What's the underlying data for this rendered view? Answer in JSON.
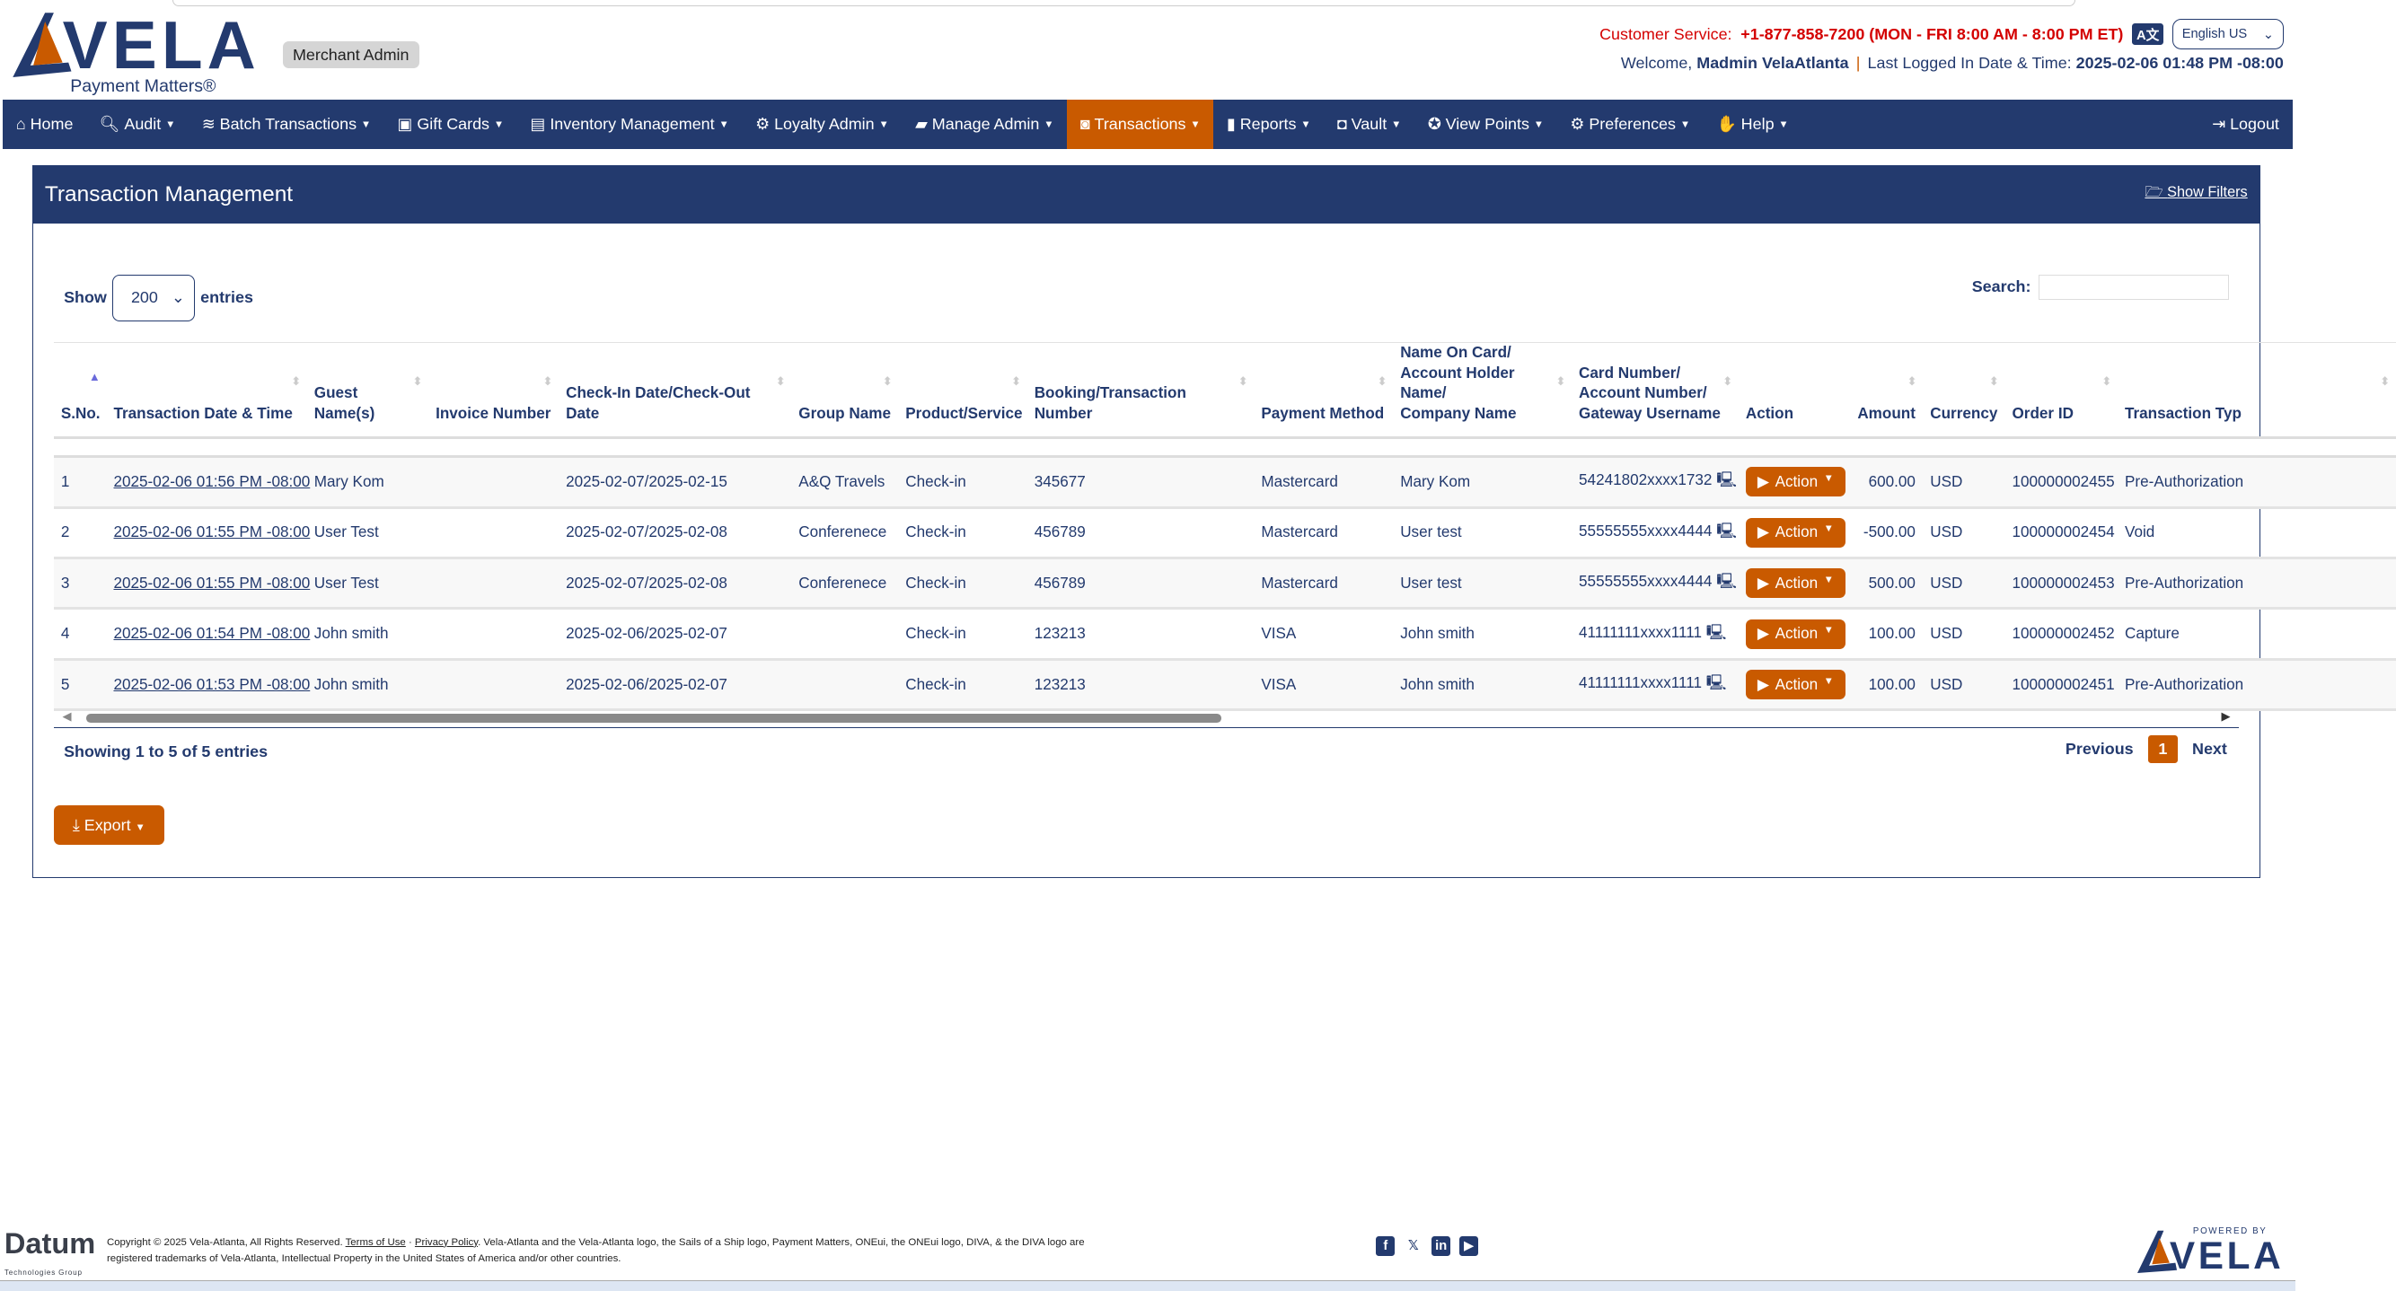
{
  "header": {
    "logo_text": "VELA",
    "tagline": "Payment Matters®",
    "role_badge": "Merchant Admin",
    "customer_service_label": "Customer Service:",
    "customer_service_value": "+1-877-858-7200 (MON - FRI 8:00 AM - 8:00 PM ET)",
    "language": "English US",
    "welcome_label": "Welcome,",
    "user_name": "Madmin VelaAtlanta",
    "last_login_label": "Last Logged In Date & Time:",
    "last_login_value": "2025-02-06 01:48 PM -08:00"
  },
  "nav": [
    {
      "label": "Home",
      "icon": "home-icon"
    },
    {
      "label": "Audit",
      "icon": "search-icon",
      "dropdown": true
    },
    {
      "label": "Batch Transactions",
      "icon": "layers-icon",
      "dropdown": true
    },
    {
      "label": "Gift Cards",
      "icon": "gift-icon",
      "dropdown": true
    },
    {
      "label": "Inventory Management",
      "icon": "warehouse-icon",
      "dropdown": true
    },
    {
      "label": "Loyalty Admin",
      "icon": "gears-icon",
      "dropdown": true
    },
    {
      "label": "Manage Admin",
      "icon": "briefcase-icon",
      "dropdown": true
    },
    {
      "label": "Transactions",
      "icon": "money-icon",
      "dropdown": true,
      "active": true
    },
    {
      "label": "Reports",
      "icon": "bar-chart-icon",
      "dropdown": true
    },
    {
      "label": "Vault",
      "icon": "safe-icon",
      "dropdown": true
    },
    {
      "label": "View Points",
      "icon": "award-icon",
      "dropdown": true
    },
    {
      "label": "Preferences",
      "icon": "gear-icon",
      "dropdown": true
    },
    {
      "label": "Help",
      "icon": "hand-icon",
      "dropdown": true
    }
  ],
  "logout": "Logout",
  "panel": {
    "title": "Transaction Management",
    "show_filters": "Show Filters",
    "show_label": "Show",
    "entries_value": "200",
    "entries_label": "entries",
    "search_label": "Search:",
    "search_value": ""
  },
  "table": {
    "columns": [
      "S.No.",
      "Transaction Date & Time",
      "Guest Name(s)",
      "Invoice Number",
      "Check-In Date/Check-Out Date",
      "Group Name",
      "Product/Service",
      "Booking/Transaction Number",
      "Payment Method",
      "Name On Card/ Account Holder Name/ Company Name",
      "Card Number/ Account Number/ Gateway Username",
      "Action",
      "Amount",
      "Currency",
      "Order ID",
      "Transaction Typ"
    ],
    "rows": [
      [
        "1",
        "2025-02-06 01:56 PM -08:00",
        "Mary Kom",
        "",
        "2025-02-07/2025-02-15",
        "A&Q Travels",
        "Check-in",
        "345677",
        "Mastercard",
        "Mary Kom",
        "54241802xxxx1732",
        "Action",
        "600.00",
        "USD",
        "100000002455",
        "Pre-Authorization"
      ],
      [
        "2",
        "2025-02-06 01:55 PM -08:00",
        "User Test",
        "",
        "2025-02-07/2025-02-08",
        "Conferenece",
        "Check-in",
        "456789",
        "Mastercard",
        "User test",
        "55555555xxxx4444",
        "Action",
        "-500.00",
        "USD",
        "100000002454",
        "Void"
      ],
      [
        "3",
        "2025-02-06 01:55 PM -08:00",
        "User Test",
        "",
        "2025-02-07/2025-02-08",
        "Conferenece",
        "Check-in",
        "456789",
        "Mastercard",
        "User test",
        "55555555xxxx4444",
        "Action",
        "500.00",
        "USD",
        "100000002453",
        "Pre-Authorization"
      ],
      [
        "4",
        "2025-02-06 01:54 PM -08:00",
        "John smith",
        "",
        "2025-02-06/2025-02-07",
        "",
        "Check-in",
        "123213",
        "VISA",
        "John smith",
        "41111111xxxx1111",
        "Action",
        "100.00",
        "USD",
        "100000002452",
        "Capture"
      ],
      [
        "5",
        "2025-02-06 01:53 PM -08:00",
        "John smith",
        "",
        "2025-02-06/2025-02-07",
        "",
        "Check-in",
        "123213",
        "VISA",
        "John smith",
        "41111111xxxx1111",
        "Action",
        "100.00",
        "USD",
        "100000002451",
        "Pre-Authorization"
      ]
    ]
  },
  "pagination": {
    "info": "Showing 1 to 5 of 5 entries",
    "previous": "Previous",
    "current": "1",
    "next": "Next"
  },
  "export_label": "Export",
  "footer": {
    "datum": "Datum",
    "datum_sub": "Technologies Group",
    "copyright": "Copyright © 2025 Vela-Atlanta, All Rights Reserved.",
    "terms": "Terms of Use",
    "privacy": "Privacy Policy",
    "trademark": ". Vela-Atlanta and the Vela-Atlanta logo, the Sails of a Ship logo, Payment Matters, ONEui, the ONEui logo, DIVA, & the DIVA logo are registered trademarks of Vela-Atlanta, Intellectual Property in the United States of America and/or other countries.",
    "social": [
      "facebook-icon",
      "x-icon",
      "linkedin-icon",
      "youtube-icon"
    ],
    "powered_by": "POWERED BY",
    "powered_logo": "VELA"
  },
  "colors": {
    "navy": "#233a6e",
    "orange": "#c95a00",
    "red": "#d40000"
  }
}
